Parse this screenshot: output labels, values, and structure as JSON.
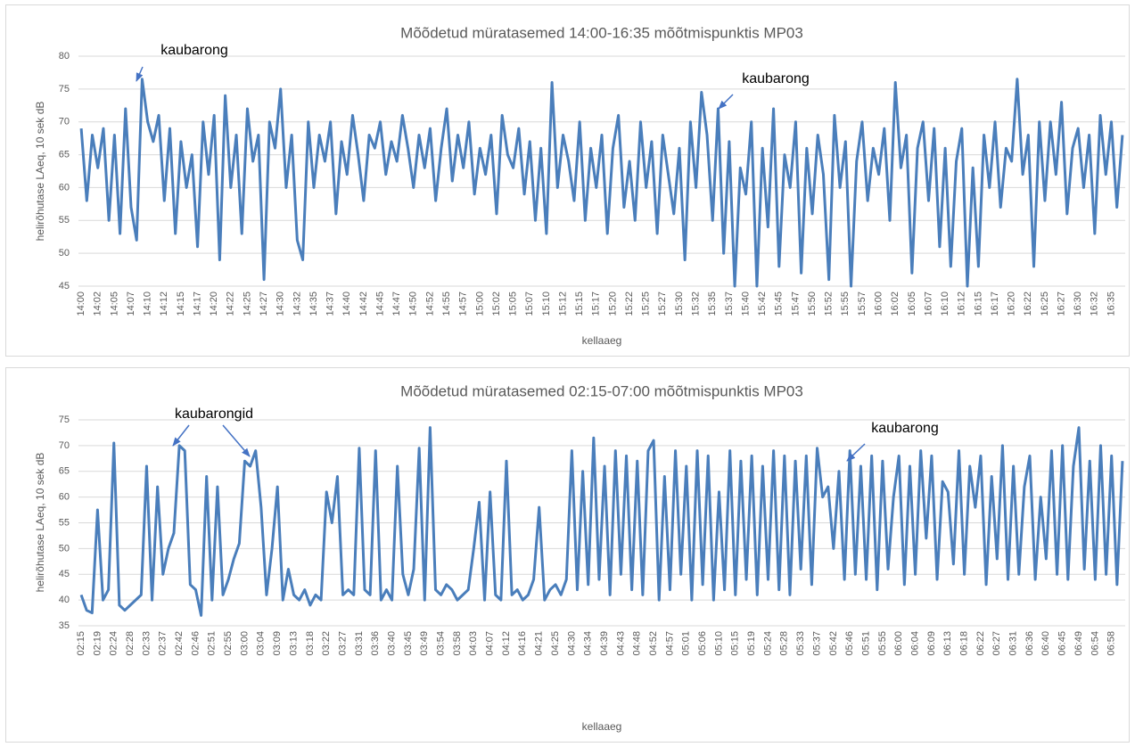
{
  "chart_data": [
    {
      "type": "line",
      "title": "Mõõdetud müratasemed 14:00-16:35 mõõtmispunktis MP03",
      "y_label": "helirõhutase LAeq, 10 sek dB",
      "x_label": "kellaaeg",
      "color": "#4a7ebb",
      "grid": true,
      "ylim": [
        45,
        80
      ],
      "yticks": [
        45,
        50,
        55,
        60,
        65,
        70,
        75,
        80
      ],
      "annotations": [
        {
          "text": "kaubarong"
        },
        {
          "text": "kaubarong"
        }
      ],
      "categories": [
        "14:00",
        null,
        null,
        "14:02",
        null,
        null,
        "14:05",
        null,
        null,
        "14:07",
        null,
        null,
        "14:10",
        null,
        null,
        "14:12",
        null,
        null,
        "14:15",
        null,
        null,
        "14:17",
        null,
        null,
        "14:20",
        null,
        null,
        "14:22",
        null,
        null,
        "14:25",
        null,
        null,
        "14:27",
        null,
        null,
        "14:30",
        null,
        null,
        "14:32",
        null,
        null,
        "14:35",
        null,
        null,
        "14:37",
        null,
        null,
        "14:40",
        null,
        null,
        "14:42",
        null,
        null,
        "14:45",
        null,
        null,
        "14:47",
        null,
        null,
        "14:50",
        null,
        null,
        "14:52",
        null,
        null,
        "14:55",
        null,
        null,
        "14:57",
        null,
        null,
        "15:00",
        null,
        null,
        "15:02",
        null,
        null,
        "15:05",
        null,
        null,
        "15:07",
        null,
        null,
        "15:10",
        null,
        null,
        "15:12",
        null,
        null,
        "15:15",
        null,
        null,
        "15:17",
        null,
        null,
        "15:20",
        null,
        null,
        "15:22",
        null,
        null,
        "15:25",
        null,
        null,
        "15:27",
        null,
        null,
        "15:30",
        null,
        null,
        "15:32",
        null,
        null,
        "15:35",
        null,
        null,
        "15:37",
        null,
        null,
        "15:40",
        null,
        null,
        "15:42",
        null,
        null,
        "15:45",
        null,
        null,
        "15:47",
        null,
        null,
        "15:50",
        null,
        null,
        "15:52",
        null,
        null,
        "15:55",
        null,
        null,
        "15:57",
        null,
        null,
        "16:00",
        null,
        null,
        "16:02",
        null,
        null,
        "16:05",
        null,
        null,
        "16:07",
        null,
        null,
        "16:10",
        null,
        null,
        "16:12",
        null,
        null,
        "16:15",
        null,
        null,
        "16:17",
        null,
        null,
        "16:20",
        null,
        null,
        "16:22",
        null,
        null,
        "16:25",
        null,
        null,
        "16:27",
        null,
        null,
        "16:30",
        null,
        null,
        "16:32",
        null,
        null,
        "16:35",
        null,
        null
      ],
      "values": [
        69,
        58,
        68,
        63,
        69,
        55,
        68,
        53,
        72,
        57,
        52,
        76.5,
        70,
        67,
        71,
        58,
        69,
        53,
        67,
        60,
        65,
        51,
        70,
        62,
        71,
        49,
        74,
        60,
        68,
        53,
        72,
        64,
        68,
        46,
        70,
        66,
        75,
        60,
        68,
        52,
        49,
        70,
        60,
        68,
        64,
        70,
        56,
        67,
        62,
        71,
        65,
        58,
        68,
        66,
        70,
        62,
        67,
        64,
        71,
        66,
        60,
        68,
        63,
        69,
        58,
        66,
        72,
        61,
        68,
        63,
        70,
        59,
        66,
        62,
        68,
        56,
        71,
        65,
        63,
        69,
        59,
        67,
        55,
        66,
        53,
        76,
        60,
        68,
        64,
        58,
        70,
        55,
        66,
        60,
        68,
        53,
        66,
        71,
        57,
        64,
        55,
        70,
        60,
        67,
        53,
        68,
        62,
        56,
        66,
        49,
        70,
        60,
        74.5,
        68,
        55,
        72,
        50,
        67,
        45,
        63,
        59,
        70,
        45,
        66,
        54,
        72,
        48,
        65,
        60,
        70,
        47,
        66,
        56,
        68,
        62,
        46,
        71,
        60,
        67,
        45,
        64,
        70,
        58,
        66,
        62,
        69,
        55,
        76,
        63,
        68,
        47,
        66,
        70,
        58,
        69,
        51,
        66,
        48,
        64,
        69,
        45,
        63,
        48,
        68,
        60,
        70,
        57,
        66,
        64,
        76.5,
        62,
        68,
        48,
        70,
        58,
        70,
        62,
        73,
        56,
        66,
        69,
        60,
        68,
        53,
        71,
        62,
        70,
        57,
        68
      ]
    },
    {
      "type": "line",
      "title": "Mõõdetud müratasemed 02:15-07:00 mõõtmispunktis MP03",
      "y_label": "helirõhutase LAeq, 10 sek dB",
      "x_label": "kellaaeg",
      "color": "#4a7ebb",
      "grid": true,
      "ylim": [
        35,
        75
      ],
      "yticks": [
        35,
        40,
        45,
        50,
        55,
        60,
        65,
        70,
        75
      ],
      "annotations": [
        {
          "text": "kaubarongid"
        },
        {
          "text": "kaubarong"
        }
      ],
      "categories": [
        "02:15",
        null,
        null,
        "02:19",
        null,
        null,
        "02:24",
        null,
        null,
        "02:28",
        null,
        null,
        "02:33",
        null,
        null,
        "02:37",
        null,
        null,
        "02:42",
        null,
        null,
        "02:46",
        null,
        null,
        "02:51",
        null,
        null,
        "02:55",
        null,
        null,
        "03:00",
        null,
        null,
        "03:04",
        null,
        null,
        "03:09",
        null,
        null,
        "03:13",
        null,
        null,
        "03:18",
        null,
        null,
        "03:22",
        null,
        null,
        "03:27",
        null,
        null,
        "03:31",
        null,
        null,
        "03:36",
        null,
        null,
        "03:40",
        null,
        null,
        "03:45",
        null,
        null,
        "03:49",
        null,
        null,
        "03:54",
        null,
        null,
        "03:58",
        null,
        null,
        "04:03",
        null,
        null,
        "04:07",
        null,
        null,
        "04:12",
        null,
        null,
        "04:16",
        null,
        null,
        "04:21",
        null,
        null,
        "04:25",
        null,
        null,
        "04:30",
        null,
        null,
        "04:34",
        null,
        null,
        "04:39",
        null,
        null,
        "04:43",
        null,
        null,
        "04:48",
        null,
        null,
        "04:52",
        null,
        null,
        "04:57",
        null,
        null,
        "05:01",
        null,
        null,
        "05:06",
        null,
        null,
        "05:10",
        null,
        null,
        "05:15",
        null,
        null,
        "05:19",
        null,
        null,
        "05:24",
        null,
        null,
        "05:28",
        null,
        null,
        "05:33",
        null,
        null,
        "05:37",
        null,
        null,
        "05:42",
        null,
        null,
        "05:46",
        null,
        null,
        "05:51",
        null,
        null,
        "05:55",
        null,
        null,
        "06:00",
        null,
        null,
        "06:04",
        null,
        null,
        "06:09",
        null,
        null,
        "06:13",
        null,
        null,
        "06:18",
        null,
        null,
        "06:22",
        null,
        null,
        "06:27",
        null,
        null,
        "06:31",
        null,
        null,
        "06:36",
        null,
        null,
        "06:40",
        null,
        null,
        "06:45",
        null,
        null,
        "06:49",
        null,
        null,
        "06:54",
        null,
        null,
        "06:58",
        null,
        null
      ],
      "values": [
        41,
        38,
        37.5,
        57.5,
        40,
        42,
        70.5,
        39,
        38,
        39,
        40,
        41,
        66,
        40,
        62,
        45,
        50,
        53,
        70,
        69,
        43,
        42,
        37,
        64,
        40,
        62,
        41,
        44,
        48,
        51,
        67,
        66,
        69,
        58,
        41,
        50,
        62,
        40,
        46,
        41,
        40,
        42,
        39,
        41,
        40,
        61,
        55,
        64,
        41,
        42,
        41,
        69.5,
        42,
        41,
        69,
        40,
        42,
        40,
        66,
        45,
        41,
        46,
        69.5,
        40,
        73.5,
        42,
        41,
        43,
        42,
        40,
        41,
        42,
        50,
        59,
        40,
        61,
        41,
        40,
        67,
        41,
        42,
        40,
        41,
        44,
        58,
        40,
        42,
        43,
        41,
        44,
        69,
        42,
        65,
        43,
        71.5,
        44,
        66,
        41,
        69,
        45,
        68,
        42,
        67,
        41,
        69,
        71,
        40,
        64,
        42,
        69,
        45,
        66,
        40,
        69,
        43,
        68,
        40,
        61,
        42,
        69,
        41,
        67,
        44,
        68,
        41,
        66,
        44,
        69,
        42,
        68,
        41,
        67,
        46,
        68,
        43,
        69.5,
        60,
        62,
        50,
        65,
        44,
        69,
        45,
        66,
        44,
        68,
        42,
        67,
        46,
        60,
        68,
        43,
        66,
        45,
        69,
        52,
        68,
        44,
        63,
        61,
        47,
        69,
        45,
        66,
        58,
        68,
        43,
        64,
        48,
        70,
        44,
        66,
        45,
        62,
        68,
        44,
        60,
        48,
        69,
        45,
        70,
        44,
        66,
        73.5,
        46,
        67,
        44,
        70,
        45,
        68,
        43,
        67
      ]
    }
  ]
}
